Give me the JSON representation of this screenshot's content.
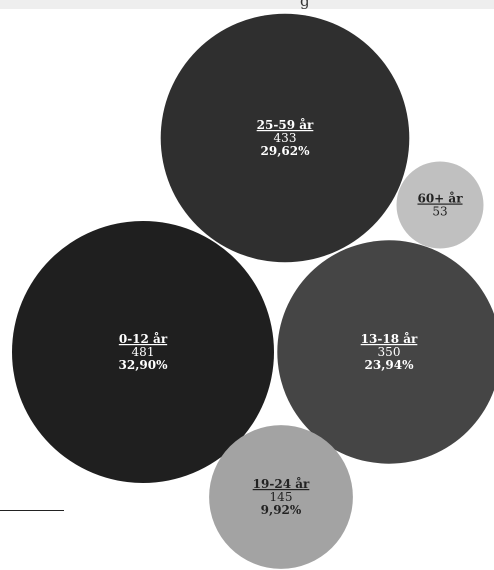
{
  "header": {
    "visible_glyph": "g"
  },
  "chart_data": {
    "type": "bubble",
    "title": "",
    "xlabel": "",
    "ylabel": "",
    "categories": [
      "25-59 år",
      "60+ år",
      "0-12 år",
      "13-18 år",
      "19-24 år"
    ],
    "values": [
      433,
      53,
      481,
      350,
      145
    ],
    "percentages": [
      "29,62%",
      "",
      "32,90%",
      "23,94%",
      "9,92%"
    ],
    "colors": [
      "#2f2f2f",
      "#c0c0c0",
      "#1f1f1f",
      "#454545",
      "#a3a3a3"
    ],
    "label_colors": [
      "#ffffff",
      "#222222",
      "#ffffff",
      "#ffffff",
      "#222222"
    ]
  }
}
